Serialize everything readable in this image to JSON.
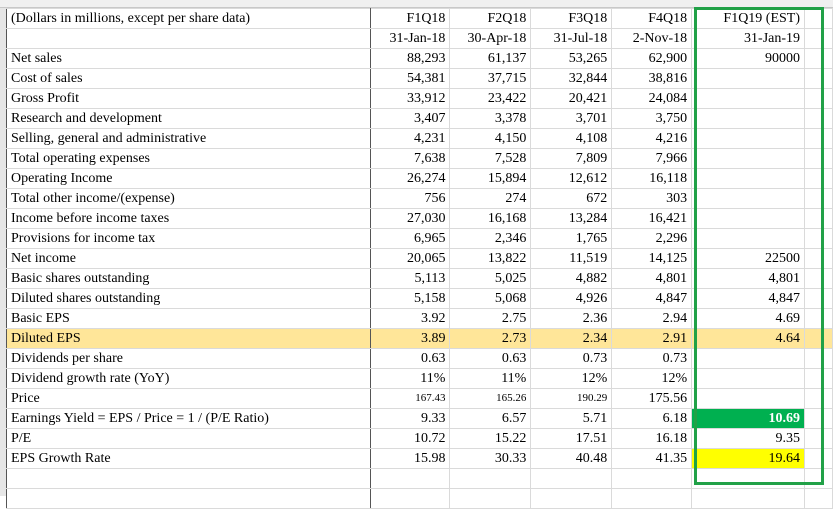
{
  "header": {
    "label": "(Dollars in millions, except per share data)",
    "periods": [
      "F1Q18",
      "F2Q18",
      "F3Q18",
      "F4Q18",
      "F1Q19 (EST)"
    ],
    "dates": [
      "31-Jan-18",
      "30-Apr-18",
      "31-Jul-18",
      "2-Nov-18",
      "31-Jan-19"
    ]
  },
  "rows": [
    {
      "label": "Net sales",
      "values": [
        "88,293",
        "61,137",
        "53,265",
        "62,900",
        "90000"
      ]
    },
    {
      "label": "Cost of sales",
      "values": [
        "54,381",
        "37,715",
        "32,844",
        "38,816",
        null
      ]
    },
    {
      "label": "Gross Profit",
      "values": [
        "33,912",
        "23,422",
        "20,421",
        "24,084",
        null
      ]
    },
    {
      "label": "Research and development",
      "values": [
        "3,407",
        "3,378",
        "3,701",
        "3,750",
        null
      ]
    },
    {
      "label": "Selling, general and administrative",
      "values": [
        "4,231",
        "4,150",
        "4,108",
        "4,216",
        null
      ]
    },
    {
      "label": "Total operating expenses",
      "values": [
        "7,638",
        "7,528",
        "7,809",
        "7,966",
        null
      ]
    },
    {
      "label": "Operating Income",
      "values": [
        "26,274",
        "15,894",
        "12,612",
        "16,118",
        null
      ]
    },
    {
      "label": "Total other income/(expense)",
      "values": [
        "756",
        "274",
        "672",
        "303",
        null
      ]
    },
    {
      "label": "Income before income taxes",
      "values": [
        "27,030",
        "16,168",
        "13,284",
        "16,421",
        null
      ]
    },
    {
      "label": "Provisions for income tax",
      "values": [
        "6,965",
        "2,346",
        "1,765",
        "2,296",
        null
      ]
    },
    {
      "label": "Net income",
      "values": [
        "20,065",
        "13,822",
        "11,519",
        "14,125",
        "22500"
      ]
    },
    {
      "label": "Basic shares outstanding",
      "values": [
        "5,113",
        "5,025",
        "4,882",
        "4,801",
        "4,801"
      ]
    },
    {
      "label": "Diluted shares outstanding",
      "values": [
        "5,158",
        "5,068",
        "4,926",
        "4,847",
        "4,847"
      ]
    },
    {
      "label": "Basic EPS",
      "values": [
        "3.92",
        "2.75",
        "2.36",
        "2.94",
        "4.69"
      ]
    },
    {
      "label": "Diluted EPS",
      "values": [
        "3.89",
        "2.73",
        "2.34",
        "2.91",
        "4.64"
      ]
    },
    {
      "label": "Dividends per share",
      "values": [
        "0.63",
        "0.63",
        "0.73",
        "0.73",
        null
      ]
    },
    {
      "label": "Dividend growth rate (YoY)",
      "values": [
        "11%",
        "11%",
        "12%",
        "12%",
        null
      ]
    },
    {
      "label": "Price",
      "values": [
        "167.43",
        "165.26",
        "190.29",
        "175.56",
        null
      ]
    },
    {
      "label": "Earnings Yield = EPS / Price = 1 / (P/E Ratio)",
      "values": [
        "9.33",
        "6.57",
        "5.71",
        "6.18",
        "10.69"
      ]
    },
    {
      "label": "P/E",
      "values": [
        "10.72",
        "15.22",
        "17.51",
        "16.18",
        "9.35"
      ]
    },
    {
      "label": "EPS Growth Rate",
      "values": [
        "15.98",
        "30.33",
        "40.48",
        "41.35",
        "19.64"
      ]
    }
  ]
}
